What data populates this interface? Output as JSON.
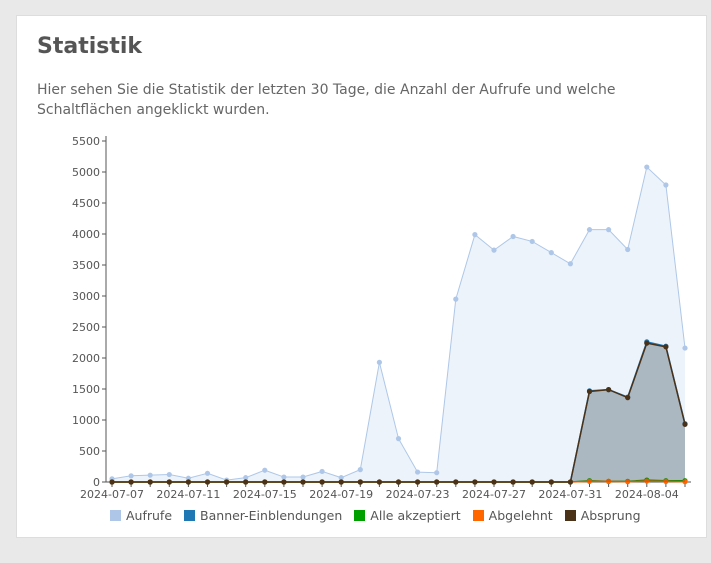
{
  "title": "Statistik",
  "description": "Hier sehen Sie die Statistik der letzten 30 Tage, die Anzahl der Aufrufe und welche Schaltflächen angeklickt wurden.",
  "chart_data": {
    "type": "area",
    "x": [
      "2024-07-07",
      "2024-07-08",
      "2024-07-09",
      "2024-07-10",
      "2024-07-11",
      "2024-07-12",
      "2024-07-13",
      "2024-07-14",
      "2024-07-15",
      "2024-07-16",
      "2024-07-17",
      "2024-07-18",
      "2024-07-19",
      "2024-07-20",
      "2024-07-21",
      "2024-07-22",
      "2024-07-23",
      "2024-07-24",
      "2024-07-25",
      "2024-07-26",
      "2024-07-27",
      "2024-07-28",
      "2024-07-29",
      "2024-07-30",
      "2024-07-31",
      "2024-08-01",
      "2024-08-02",
      "2024-08-03",
      "2024-08-04",
      "2024-08-05",
      "2024-08-06"
    ],
    "xticks": [
      "2024-07-07",
      "2024-07-11",
      "2024-07-15",
      "2024-07-19",
      "2024-07-23",
      "2024-07-27",
      "2024-07-31",
      "2024-08-04"
    ],
    "yticks": [
      0,
      500,
      1000,
      1500,
      2000,
      2500,
      3000,
      3500,
      4000,
      4500,
      5000,
      5500
    ],
    "ylim": [
      0,
      5500
    ],
    "legend_position": "bottom",
    "series": [
      {
        "name": "Aufrufe",
        "color": "#aec7e8",
        "values": [
          50,
          100,
          110,
          120,
          60,
          140,
          30,
          70,
          190,
          80,
          80,
          170,
          70,
          200,
          1930,
          700,
          160,
          150,
          2950,
          3990,
          3740,
          3960,
          3880,
          3700,
          3520,
          4070,
          4070,
          3750,
          5080,
          4790,
          2160
        ]
      },
      {
        "name": "Banner-Einblendungen",
        "color": "#1f77b4",
        "values": [
          0,
          0,
          0,
          0,
          0,
          0,
          0,
          0,
          0,
          0,
          0,
          0,
          0,
          0,
          0,
          0,
          0,
          0,
          0,
          0,
          0,
          0,
          0,
          0,
          0,
          1470,
          1490,
          1370,
          2260,
          2190,
          940
        ]
      },
      {
        "name": "Alle akzeptiert",
        "color": "#00a000",
        "values": [
          0,
          0,
          0,
          0,
          0,
          0,
          0,
          0,
          0,
          0,
          0,
          0,
          0,
          0,
          0,
          0,
          0,
          0,
          0,
          0,
          0,
          0,
          0,
          0,
          0,
          20,
          10,
          10,
          30,
          20,
          20
        ]
      },
      {
        "name": "Abgelehnt",
        "color": "#ff6600",
        "values": [
          0,
          0,
          0,
          0,
          0,
          0,
          0,
          0,
          0,
          0,
          0,
          0,
          0,
          0,
          0,
          0,
          0,
          0,
          0,
          0,
          0,
          0,
          0,
          0,
          0,
          10,
          10,
          5,
          15,
          10,
          5
        ]
      },
      {
        "name": "Absprung",
        "color": "#4a3219",
        "values": [
          0,
          0,
          0,
          0,
          0,
          0,
          0,
          0,
          0,
          0,
          0,
          0,
          0,
          0,
          0,
          0,
          0,
          0,
          0,
          0,
          0,
          0,
          0,
          0,
          0,
          1460,
          1490,
          1360,
          2240,
          2180,
          930
        ]
      }
    ]
  }
}
